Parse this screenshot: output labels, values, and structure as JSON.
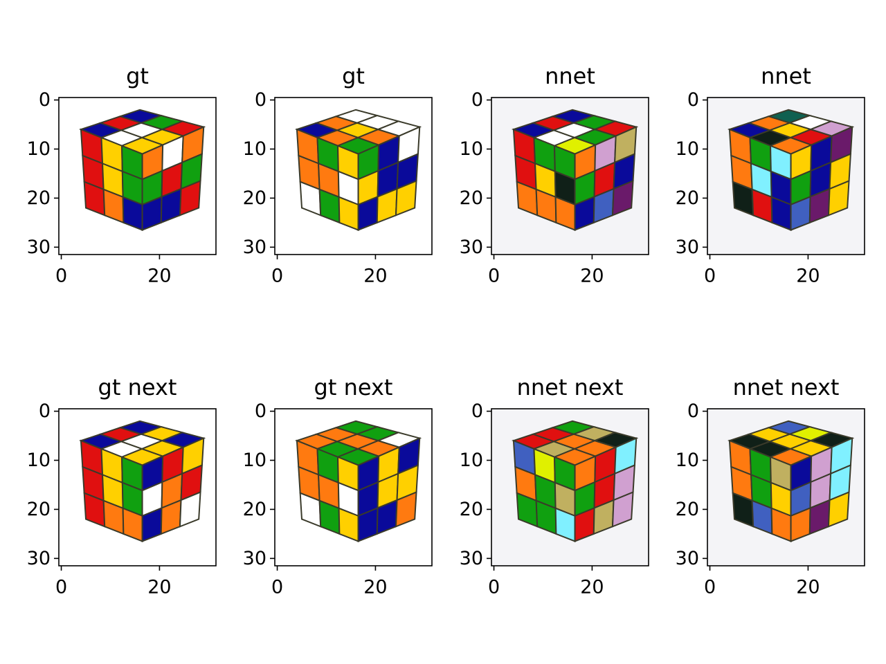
{
  "chart_data": [
    {
      "type": "image",
      "title": "gt",
      "xlim": [
        -0.5,
        31.5
      ],
      "ylim": [
        31.5,
        -0.5
      ],
      "xticks": [
        0,
        20
      ],
      "yticks": [
        0,
        10,
        20,
        30
      ]
    },
    {
      "type": "image",
      "title": "gt",
      "xlim": [
        -0.5,
        31.5
      ],
      "ylim": [
        31.5,
        -0.5
      ],
      "xticks": [
        0,
        20
      ],
      "yticks": [
        0,
        10,
        20,
        30
      ]
    },
    {
      "type": "image",
      "title": "nnet",
      "xlim": [
        -0.5,
        31.5
      ],
      "ylim": [
        31.5,
        -0.5
      ],
      "xticks": [
        0,
        20
      ],
      "yticks": [
        0,
        10,
        20,
        30
      ]
    },
    {
      "type": "image",
      "title": "nnet",
      "xlim": [
        -0.5,
        31.5
      ],
      "ylim": [
        31.5,
        -0.5
      ],
      "xticks": [
        0,
        20
      ],
      "yticks": [
        0,
        10,
        20,
        30
      ]
    },
    {
      "type": "image",
      "title": "gt next",
      "xlim": [
        -0.5,
        31.5
      ],
      "ylim": [
        31.5,
        -0.5
      ],
      "xticks": [
        0,
        20
      ],
      "yticks": [
        0,
        10,
        20,
        30
      ]
    },
    {
      "type": "image",
      "title": "gt next",
      "xlim": [
        -0.5,
        31.5
      ],
      "ylim": [
        31.5,
        -0.5
      ],
      "xticks": [
        0,
        20
      ],
      "yticks": [
        0,
        10,
        20,
        30
      ]
    },
    {
      "type": "image",
      "title": "nnet next",
      "xlim": [
        -0.5,
        31.5
      ],
      "ylim": [
        31.5,
        -0.5
      ],
      "xticks": [
        0,
        20
      ],
      "yticks": [
        0,
        10,
        20,
        30
      ]
    },
    {
      "type": "image",
      "title": "nnet next",
      "xlim": [
        -0.5,
        31.5
      ],
      "ylim": [
        31.5,
        -0.5
      ],
      "xticks": [
        0,
        20
      ],
      "yticks": [
        0,
        10,
        20,
        30
      ]
    }
  ]
}
